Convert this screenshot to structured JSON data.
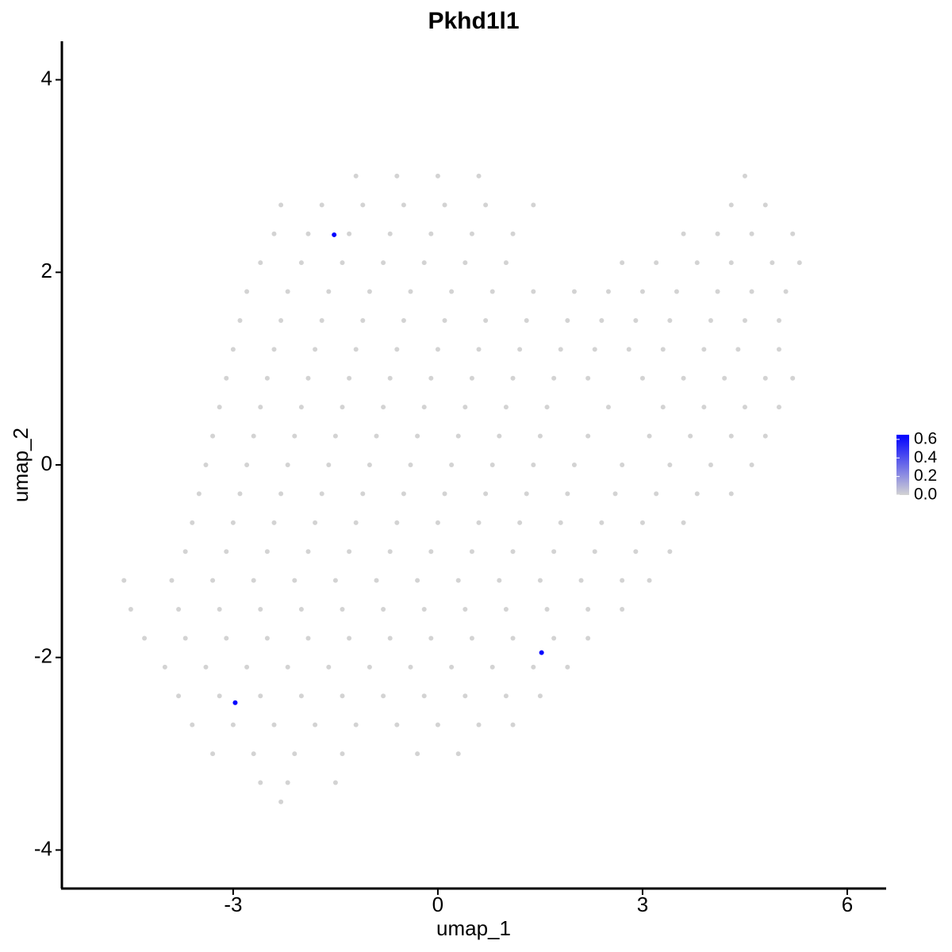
{
  "chart_data": {
    "type": "scatter",
    "title": "Pkhd1l1",
    "x_label": "umap_1",
    "y_label": "umap_2",
    "xlim": [
      -5.51,
      6.57
    ],
    "ylim": [
      -4.4,
      4.4
    ],
    "xticks": [
      -3,
      0,
      3,
      6
    ],
    "yticks": [
      -4,
      -2,
      0,
      2,
      4
    ],
    "x": [
      -1.2,
      -0.6,
      0,
      0.6,
      4.5,
      -2.3,
      -1.7,
      -1.1,
      -0.5,
      0.1,
      0.7,
      1.4,
      4.3,
      4.8,
      -2.4,
      -1.9,
      -1.3,
      -0.7,
      -0.1,
      0.5,
      1.1,
      3.6,
      4.1,
      4.6,
      5.2,
      -2.6,
      -2.0,
      -1.4,
      -0.8,
      -0.2,
      0.4,
      1.0,
      2.7,
      3.2,
      3.8,
      4.3,
      4.9,
      5.3,
      -2.8,
      -2.2,
      -1.6,
      -1.0,
      -0.4,
      0.2,
      0.8,
      1.4,
      2.0,
      2.5,
      3.0,
      3.5,
      4.1,
      4.6,
      5.1,
      -2.9,
      -2.3,
      -1.7,
      -1.1,
      -0.5,
      0.1,
      0.7,
      1.3,
      1.9,
      2.4,
      2.9,
      3.4,
      4.0,
      4.5,
      5.0,
      -3.0,
      -2.4,
      -1.8,
      -1.2,
      -0.6,
      0.0,
      0.6,
      1.2,
      1.8,
      2.3,
      2.8,
      3.3,
      3.9,
      4.4,
      5.0,
      -3.1,
      -2.5,
      -1.9,
      -1.3,
      -0.7,
      -0.1,
      0.5,
      1.1,
      1.7,
      2.2,
      3.0,
      3.6,
      4.2,
      4.8,
      5.2,
      -3.2,
      -2.6,
      -2.0,
      -1.4,
      -0.8,
      -0.2,
      0.4,
      1.0,
      1.6,
      2.5,
      3.3,
      3.9,
      4.5,
      5.0,
      -3.3,
      -2.7,
      -2.1,
      -1.5,
      -0.9,
      -0.3,
      0.3,
      0.9,
      1.5,
      2.2,
      3.1,
      3.7,
      4.3,
      4.8,
      -3.4,
      -2.8,
      -2.2,
      -1.6,
      -1.0,
      -0.4,
      0.2,
      0.8,
      1.4,
      2.0,
      2.7,
      3.4,
      4.0,
      4.6,
      -3.5,
      -2.9,
      -2.3,
      -1.7,
      -1.1,
      -0.5,
      0.1,
      0.7,
      1.3,
      1.9,
      2.6,
      3.2,
      3.8,
      4.3,
      -3.6,
      -3.0,
      -2.4,
      -1.8,
      -1.2,
      -0.6,
      0.0,
      0.6,
      1.2,
      1.8,
      2.4,
      3.0,
      3.6,
      -3.7,
      -3.1,
      -2.5,
      -1.9,
      -1.3,
      -0.7,
      -0.1,
      0.5,
      1.1,
      1.7,
      2.3,
      2.9,
      3.4,
      -4.6,
      -3.9,
      -3.3,
      -2.7,
      -2.1,
      -1.5,
      -0.9,
      -0.3,
      0.3,
      0.9,
      1.5,
      2.1,
      2.7,
      3.1,
      -4.5,
      -3.8,
      -3.2,
      -2.6,
      -2.0,
      -1.4,
      -0.8,
      -0.2,
      0.4,
      1.0,
      1.6,
      2.2,
      2.7,
      -4.3,
      -3.7,
      -3.1,
      -2.5,
      -1.9,
      -1.3,
      -0.7,
      -0.1,
      0.5,
      1.1,
      1.7,
      2.2,
      -4.0,
      -3.4,
      -2.8,
      -2.2,
      -1.6,
      -1.0,
      -0.4,
      0.2,
      0.8,
      1.4,
      1.9,
      -3.8,
      -3.2,
      -2.6,
      -2.0,
      -1.4,
      -0.8,
      -0.2,
      0.4,
      1.0,
      1.5,
      -3.6,
      -3.0,
      -2.4,
      -1.8,
      -1.2,
      -0.6,
      0.0,
      0.6,
      1.1,
      -3.3,
      -2.7,
      -2.1,
      -1.4,
      -0.3,
      0.3,
      -2.6,
      -2.2,
      -1.5,
      -2.3,
      -2.97,
      -1.52,
      1.52
    ],
    "y": [
      3.0,
      3.0,
      3.0,
      3.0,
      3.0,
      2.7,
      2.7,
      2.7,
      2.7,
      2.7,
      2.7,
      2.7,
      2.7,
      2.7,
      2.4,
      2.4,
      2.4,
      2.4,
      2.4,
      2.4,
      2.4,
      2.4,
      2.4,
      2.4,
      2.4,
      2.1,
      2.1,
      2.1,
      2.1,
      2.1,
      2.1,
      2.1,
      2.1,
      2.1,
      2.1,
      2.1,
      2.1,
      2.1,
      1.8,
      1.8,
      1.8,
      1.8,
      1.8,
      1.8,
      1.8,
      1.8,
      1.8,
      1.8,
      1.8,
      1.8,
      1.8,
      1.8,
      1.8,
      1.5,
      1.5,
      1.5,
      1.5,
      1.5,
      1.5,
      1.5,
      1.5,
      1.5,
      1.5,
      1.5,
      1.5,
      1.5,
      1.5,
      1.5,
      1.2,
      1.2,
      1.2,
      1.2,
      1.2,
      1.2,
      1.2,
      1.2,
      1.2,
      1.2,
      1.2,
      1.2,
      1.2,
      1.2,
      1.2,
      0.9,
      0.9,
      0.9,
      0.9,
      0.9,
      0.9,
      0.9,
      0.9,
      0.9,
      0.9,
      0.9,
      0.9,
      0.9,
      0.9,
      0.9,
      0.6,
      0.6,
      0.6,
      0.6,
      0.6,
      0.6,
      0.6,
      0.6,
      0.6,
      0.6,
      0.6,
      0.6,
      0.6,
      0.6,
      0.3,
      0.3,
      0.3,
      0.3,
      0.3,
      0.3,
      0.3,
      0.3,
      0.3,
      0.3,
      0.3,
      0.3,
      0.3,
      0.3,
      0.0,
      0.0,
      0.0,
      0.0,
      0.0,
      0.0,
      0.0,
      0.0,
      0.0,
      0.0,
      0.0,
      0.0,
      0.0,
      0.0,
      -0.3,
      -0.3,
      -0.3,
      -0.3,
      -0.3,
      -0.3,
      -0.3,
      -0.3,
      -0.3,
      -0.3,
      -0.3,
      -0.3,
      -0.3,
      -0.3,
      -0.6,
      -0.6,
      -0.6,
      -0.6,
      -0.6,
      -0.6,
      -0.6,
      -0.6,
      -0.6,
      -0.6,
      -0.6,
      -0.6,
      -0.6,
      -0.9,
      -0.9,
      -0.9,
      -0.9,
      -0.9,
      -0.9,
      -0.9,
      -0.9,
      -0.9,
      -0.9,
      -0.9,
      -0.9,
      -0.9,
      -1.2,
      -1.2,
      -1.2,
      -1.2,
      -1.2,
      -1.2,
      -1.2,
      -1.2,
      -1.2,
      -1.2,
      -1.2,
      -1.2,
      -1.2,
      -1.2,
      -1.5,
      -1.5,
      -1.5,
      -1.5,
      -1.5,
      -1.5,
      -1.5,
      -1.5,
      -1.5,
      -1.5,
      -1.5,
      -1.5,
      -1.5,
      -1.8,
      -1.8,
      -1.8,
      -1.8,
      -1.8,
      -1.8,
      -1.8,
      -1.8,
      -1.8,
      -1.8,
      -1.8,
      -1.8,
      -2.1,
      -2.1,
      -2.1,
      -2.1,
      -2.1,
      -2.1,
      -2.1,
      -2.1,
      -2.1,
      -2.1,
      -2.1,
      -2.4,
      -2.4,
      -2.4,
      -2.4,
      -2.4,
      -2.4,
      -2.4,
      -2.4,
      -2.4,
      -2.4,
      -2.7,
      -2.7,
      -2.7,
      -2.7,
      -2.7,
      -2.7,
      -2.7,
      -2.7,
      -2.7,
      -3.0,
      -3.0,
      -3.0,
      -3.0,
      -3.0,
      -3.0,
      -3.3,
      -3.3,
      -3.3,
      -3.5,
      -2.47,
      2.39,
      -1.95
    ],
    "values": [
      0,
      0,
      0,
      0,
      0,
      0,
      0,
      0,
      0,
      0,
      0,
      0,
      0,
      0,
      0,
      0,
      0,
      0,
      0,
      0,
      0,
      0,
      0,
      0,
      0,
      0,
      0,
      0,
      0,
      0,
      0,
      0,
      0,
      0,
      0,
      0,
      0,
      0,
      0,
      0,
      0,
      0,
      0,
      0,
      0,
      0,
      0,
      0,
      0,
      0,
      0,
      0,
      0,
      0,
      0,
      0,
      0,
      0,
      0,
      0,
      0,
      0,
      0,
      0,
      0,
      0,
      0,
      0,
      0,
      0,
      0,
      0,
      0,
      0,
      0,
      0,
      0,
      0,
      0,
      0,
      0,
      0,
      0,
      0,
      0,
      0,
      0,
      0,
      0,
      0,
      0,
      0,
      0,
      0,
      0,
      0,
      0,
      0,
      0,
      0,
      0,
      0,
      0,
      0,
      0,
      0,
      0,
      0,
      0,
      0,
      0,
      0,
      0,
      0,
      0,
      0,
      0,
      0,
      0,
      0,
      0,
      0,
      0,
      0,
      0,
      0,
      0,
      0,
      0,
      0,
      0,
      0,
      0,
      0,
      0,
      0,
      0,
      0,
      0,
      0,
      0,
      0,
      0,
      0,
      0,
      0,
      0,
      0,
      0,
      0,
      0,
      0,
      0,
      0,
      0,
      0,
      0,
      0,
      0,
      0,
      0,
      0,
      0,
      0,
      0,
      0,
      0,
      0,
      0,
      0,
      0,
      0,
      0,
      0,
      0,
      0,
      0,
      0,
      0,
      0,
      0,
      0,
      0,
      0,
      0,
      0,
      0,
      0,
      0,
      0,
      0,
      0,
      0,
      0,
      0,
      0,
      0,
      0,
      0,
      0,
      0,
      0,
      0,
      0,
      0,
      0,
      0,
      0,
      0,
      0,
      0,
      0,
      0,
      0,
      0,
      0,
      0,
      0,
      0,
      0,
      0,
      0,
      0,
      0,
      0,
      0,
      0,
      0,
      0,
      0,
      0,
      0,
      0,
      0,
      0,
      0,
      0,
      0,
      0,
      0,
      0,
      0,
      0,
      0,
      0,
      0,
      0,
      0,
      0,
      0,
      0,
      0,
      0,
      0,
      0,
      0,
      0,
      0,
      0,
      0.65,
      0.65,
      0.65
    ],
    "colorbar": {
      "lim": [
        0,
        0.65
      ],
      "ticks": [
        {
          "value": 0,
          "label": "0.0"
        },
        0.2,
        0.4,
        0.6
      ],
      "low_color": "#d3d3d3",
      "high_color": "#0000ff"
    }
  }
}
